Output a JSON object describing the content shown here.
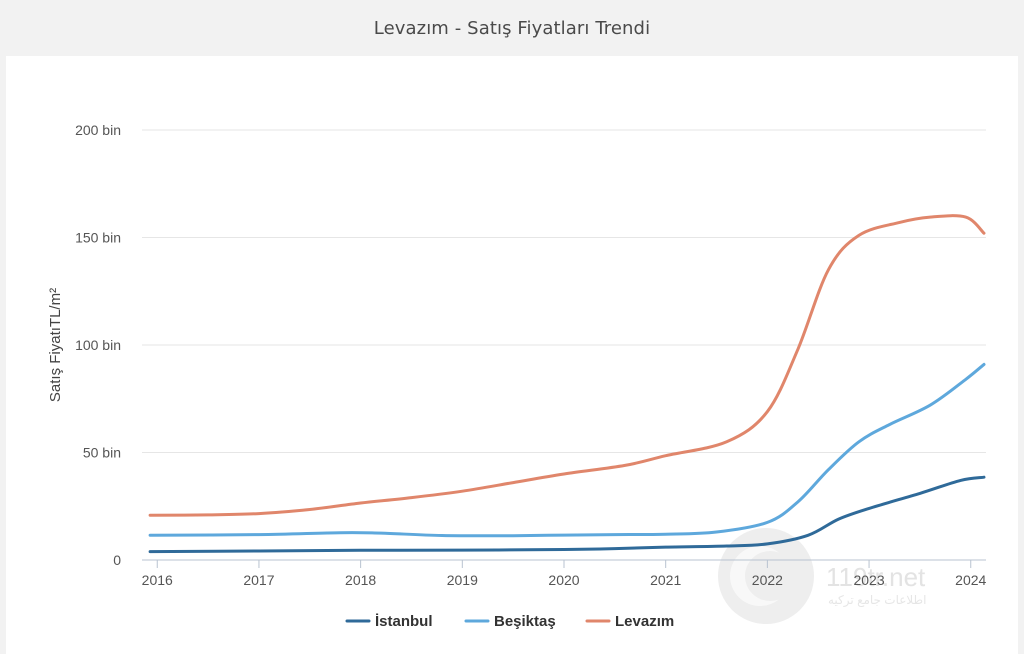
{
  "header": {
    "title": "Levazım - Satış Fiyatları Trendi"
  },
  "watermark": {
    "text": "119tr.net",
    "subtext": "اطلاعات جامع ترکیه"
  },
  "chart_data": {
    "type": "line",
    "title": "Levazım - Satış Fiyatları Trendi",
    "xlabel": "",
    "ylabel": "Satış FiyatıTL/m²",
    "xlim": [
      2015.85,
      2024.15
    ],
    "ylim": [
      0,
      200000
    ],
    "x_ticks": [
      "2016",
      "2017",
      "2018",
      "2019",
      "2020",
      "2021",
      "2022",
      "2023",
      "2024"
    ],
    "y_ticks": [
      {
        "value": 0,
        "label": "0"
      },
      {
        "value": 50000,
        "label": "50 bin"
      },
      {
        "value": 100000,
        "label": "100 bin"
      },
      {
        "value": 150000,
        "label": "150 bin"
      },
      {
        "value": 200000,
        "label": "200 bin"
      }
    ],
    "grid": true,
    "legend_position": "bottom-center",
    "series": [
      {
        "name": "İstanbul",
        "color": "#2f6a99",
        "points": [
          [
            2015.93,
            3900
          ],
          [
            2017.0,
            4200
          ],
          [
            2018.0,
            4500
          ],
          [
            2019.0,
            4600
          ],
          [
            2020.0,
            4900
          ],
          [
            2020.5,
            5300
          ],
          [
            2021.0,
            6000
          ],
          [
            2021.6,
            6500
          ],
          [
            2022.0,
            7500
          ],
          [
            2022.4,
            11500
          ],
          [
            2022.7,
            19000
          ],
          [
            2023.0,
            24000
          ],
          [
            2023.5,
            31000
          ],
          [
            2023.9,
            37000
          ],
          [
            2024.13,
            38500
          ]
        ]
      },
      {
        "name": "Beşiktaş",
        "color": "#5ea8dc",
        "points": [
          [
            2015.93,
            11500
          ],
          [
            2017.0,
            11800
          ],
          [
            2017.8,
            12700
          ],
          [
            2018.2,
            12500
          ],
          [
            2018.8,
            11400
          ],
          [
            2019.5,
            11300
          ],
          [
            2020.0,
            11600
          ],
          [
            2020.5,
            11800
          ],
          [
            2021.0,
            12000
          ],
          [
            2021.5,
            13000
          ],
          [
            2022.0,
            17500
          ],
          [
            2022.3,
            27000
          ],
          [
            2022.6,
            42000
          ],
          [
            2022.9,
            55000
          ],
          [
            2023.2,
            63000
          ],
          [
            2023.6,
            72000
          ],
          [
            2023.95,
            84000
          ],
          [
            2024.13,
            91000
          ]
        ]
      },
      {
        "name": "Levazım",
        "color": "#e0866b",
        "points": [
          [
            2015.93,
            20800
          ],
          [
            2016.5,
            21000
          ],
          [
            2017.0,
            21600
          ],
          [
            2017.5,
            23500
          ],
          [
            2018.0,
            26500
          ],
          [
            2018.5,
            29000
          ],
          [
            2019.0,
            32000
          ],
          [
            2019.5,
            36000
          ],
          [
            2020.0,
            40000
          ],
          [
            2020.6,
            44000
          ],
          [
            2021.0,
            48500
          ],
          [
            2021.6,
            55000
          ],
          [
            2022.0,
            69000
          ],
          [
            2022.3,
            98000
          ],
          [
            2022.6,
            135000
          ],
          [
            2022.9,
            151000
          ],
          [
            2023.3,
            157000
          ],
          [
            2023.6,
            159500
          ],
          [
            2023.95,
            159500
          ],
          [
            2024.13,
            152000
          ]
        ]
      }
    ]
  }
}
